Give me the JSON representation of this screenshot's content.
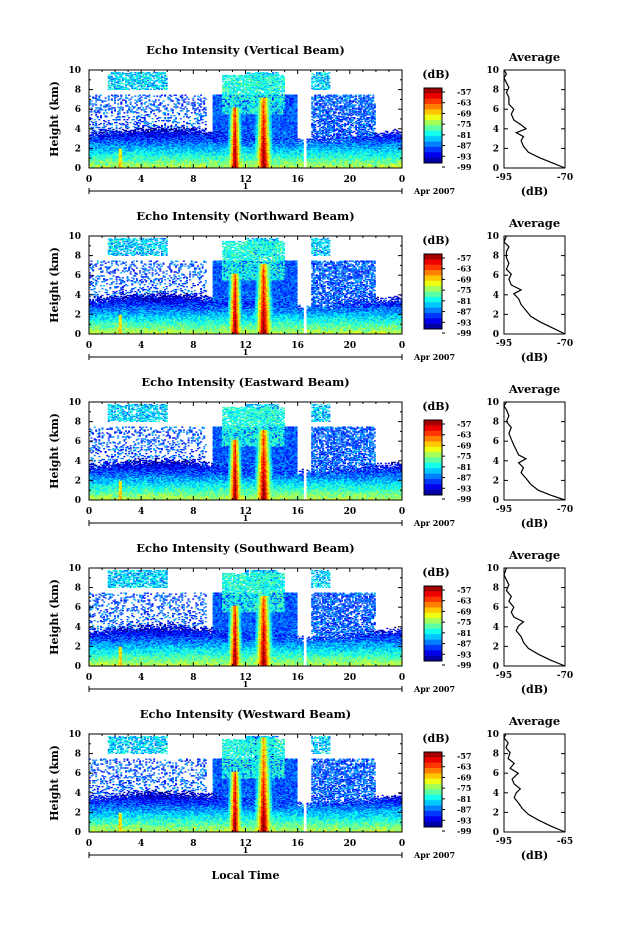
{
  "figure": {
    "date_label": "Apr 2007",
    "bottom_xlabel": "Local Time",
    "day_marker": "1",
    "colorbar_unit": "(dB)",
    "colorbar_ticks": [
      "-57",
      "-63",
      "-69",
      "-75",
      "-81",
      "-87",
      "-93",
      "-99"
    ],
    "avg_title": "Average",
    "avg_xlabel": "(dB)"
  },
  "chart_data": [
    {
      "type": "heatmap",
      "title": "Echo Intensity (Vertical Beam)",
      "ylabel": "Height (km)",
      "xlim": [
        0,
        24
      ],
      "ylim": [
        0,
        10
      ],
      "xticks": [
        "0",
        "4",
        "8",
        "12",
        "16",
        "20",
        "0"
      ],
      "yticks": [
        "0",
        "2",
        "4",
        "6",
        "8",
        "10"
      ],
      "zlim": [
        -99,
        -57
      ],
      "average": {
        "title": "Average",
        "xlabel": "(dB)",
        "xlim": [
          -95,
          -70
        ],
        "xticks": [
          "-95",
          "-70"
        ],
        "profile": [
          [
            -70,
            0
          ],
          [
            -75,
            0.5
          ],
          [
            -80,
            1
          ],
          [
            -85,
            1.6
          ],
          [
            -87,
            2.2
          ],
          [
            -88,
            2.8
          ],
          [
            -87,
            3.2
          ],
          [
            -90,
            3.6
          ],
          [
            -86,
            4.0
          ],
          [
            -88,
            4.4
          ],
          [
            -91,
            4.9
          ],
          [
            -92,
            5.5
          ],
          [
            -91,
            6.0
          ],
          [
            -93,
            6.5
          ],
          [
            -93,
            7.2
          ],
          [
            -94,
            7.7
          ],
          [
            -93,
            8.2
          ],
          [
            -94,
            8.7
          ],
          [
            -95,
            9.2
          ],
          [
            -94,
            9.6
          ],
          [
            -95,
            10
          ]
        ]
      }
    },
    {
      "type": "heatmap",
      "title": "Echo Intensity (Northward Beam)",
      "ylabel": "Height (km)",
      "xlim": [
        0,
        24
      ],
      "ylim": [
        0,
        10
      ],
      "xticks": [
        "0",
        "4",
        "8",
        "12",
        "16",
        "20",
        "0"
      ],
      "yticks": [
        "0",
        "2",
        "4",
        "6",
        "8",
        "10"
      ],
      "zlim": [
        -99,
        -57
      ],
      "average": {
        "title": "Average",
        "xlabel": "(dB)",
        "xlim": [
          -95,
          -70
        ],
        "xticks": [
          "-95",
          "-70"
        ],
        "profile": [
          [
            -70,
            0
          ],
          [
            -75,
            0.6
          ],
          [
            -80,
            1.2
          ],
          [
            -84,
            1.8
          ],
          [
            -86,
            2.4
          ],
          [
            -88,
            3.0
          ],
          [
            -89,
            3.6
          ],
          [
            -91,
            4.1
          ],
          [
            -88,
            4.5
          ],
          [
            -92,
            5.0
          ],
          [
            -93,
            5.6
          ],
          [
            -92,
            6.1
          ],
          [
            -94,
            6.6
          ],
          [
            -93,
            7.2
          ],
          [
            -94,
            7.8
          ],
          [
            -94,
            8.4
          ],
          [
            -93,
            8.9
          ],
          [
            -95,
            9.4
          ],
          [
            -94,
            10
          ]
        ]
      }
    },
    {
      "type": "heatmap",
      "title": "Echo Intensity (Eastward Beam)",
      "ylabel": "Height (km)",
      "xlim": [
        0,
        24
      ],
      "ylim": [
        0,
        10
      ],
      "xticks": [
        "0",
        "4",
        "8",
        "12",
        "16",
        "20",
        "0"
      ],
      "yticks": [
        "0",
        "2",
        "4",
        "6",
        "8",
        "10"
      ],
      "zlim": [
        -99,
        -57
      ],
      "average": {
        "title": "Average",
        "xlabel": "(dB)",
        "xlim": [
          -95,
          -70
        ],
        "xticks": [
          "-95",
          "-70"
        ],
        "profile": [
          [
            -70,
            0
          ],
          [
            -76,
            0.5
          ],
          [
            -81,
            1.0
          ],
          [
            -84,
            1.6
          ],
          [
            -86,
            2.2
          ],
          [
            -88,
            2.8
          ],
          [
            -87,
            3.3
          ],
          [
            -89,
            3.8
          ],
          [
            -86,
            4.2
          ],
          [
            -89,
            4.6
          ],
          [
            -90,
            5.1
          ],
          [
            -91,
            5.6
          ],
          [
            -92,
            6.2
          ],
          [
            -93,
            6.8
          ],
          [
            -92,
            7.4
          ],
          [
            -94,
            8.0
          ],
          [
            -93,
            8.6
          ],
          [
            -94,
            9.2
          ],
          [
            -95,
            9.6
          ],
          [
            -94,
            10
          ]
        ]
      }
    },
    {
      "type": "heatmap",
      "title": "Echo Intensity (Southward Beam)",
      "ylabel": "Height (km)",
      "xlim": [
        0,
        24
      ],
      "ylim": [
        0,
        10
      ],
      "xticks": [
        "0",
        "4",
        "8",
        "12",
        "16",
        "20",
        "0"
      ],
      "yticks": [
        "0",
        "2",
        "4",
        "6",
        "8",
        "10"
      ],
      "zlim": [
        -99,
        -57
      ],
      "average": {
        "title": "Average",
        "xlabel": "(dB)",
        "xlim": [
          -95,
          -70
        ],
        "xticks": [
          "-95",
          "-70"
        ],
        "profile": [
          [
            -70,
            0
          ],
          [
            -76,
            0.6
          ],
          [
            -81,
            1.2
          ],
          [
            -85,
            1.8
          ],
          [
            -87,
            2.4
          ],
          [
            -88,
            3.0
          ],
          [
            -90,
            3.6
          ],
          [
            -89,
            4.1
          ],
          [
            -87,
            4.5
          ],
          [
            -91,
            5.0
          ],
          [
            -92,
            5.5
          ],
          [
            -91,
            6.0
          ],
          [
            -93,
            6.6
          ],
          [
            -92,
            7.1
          ],
          [
            -94,
            7.7
          ],
          [
            -93,
            8.3
          ],
          [
            -94,
            8.8
          ],
          [
            -95,
            9.3
          ],
          [
            -94,
            10
          ]
        ]
      }
    },
    {
      "type": "heatmap",
      "title": "Echo Intensity (Westward Beam)",
      "ylabel": "Height (km)",
      "xlim": [
        0,
        24
      ],
      "ylim": [
        0,
        10
      ],
      "xticks": [
        "0",
        "4",
        "8",
        "12",
        "16",
        "20",
        "0"
      ],
      "yticks": [
        "0",
        "2",
        "4",
        "6",
        "8",
        "10"
      ],
      "zlim": [
        -99,
        -57
      ],
      "average": {
        "title": "Average",
        "xlabel": "(dB)",
        "xlim": [
          -95,
          -65
        ],
        "xticks": [
          "-95",
          "-65"
        ],
        "profile": [
          [
            -65,
            0
          ],
          [
            -72,
            0.6
          ],
          [
            -78,
            1.2
          ],
          [
            -83,
            1.8
          ],
          [
            -86,
            2.4
          ],
          [
            -88,
            3.0
          ],
          [
            -90,
            3.5
          ],
          [
            -89,
            4.0
          ],
          [
            -87,
            4.4
          ],
          [
            -90,
            4.9
          ],
          [
            -91,
            5.4
          ],
          [
            -88,
            6.0
          ],
          [
            -92,
            6.5
          ],
          [
            -90,
            7.0
          ],
          [
            -93,
            7.5
          ],
          [
            -92,
            8.1
          ],
          [
            -94,
            8.6
          ],
          [
            -93,
            9.1
          ],
          [
            -95,
            9.6
          ],
          [
            -94,
            10
          ]
        ]
      }
    }
  ]
}
